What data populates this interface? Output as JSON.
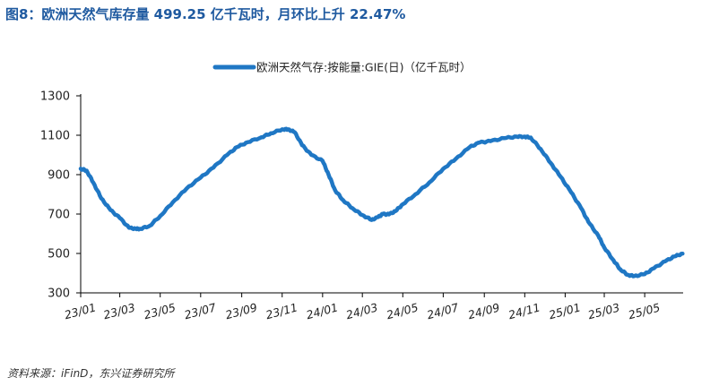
{
  "figure": {
    "title": "图8：欧洲天然气库存量 499.25 亿千瓦时，月环比上升 22.47%",
    "source": "资料来源：iFinD，东兴证券研究所"
  },
  "colors": {
    "title": "#1f5aa0",
    "series": "#1f77c4",
    "axis": "#000000"
  },
  "chart_data": {
    "type": "line",
    "title": "",
    "xlabel": "",
    "ylabel": "",
    "ylim": [
      300,
      1300
    ],
    "yticks": [
      300,
      500,
      700,
      900,
      1100,
      1300
    ],
    "xlim": [
      "2023-01-01",
      "2025-06-28"
    ],
    "xticks": [
      "23/01",
      "23/03",
      "23/05",
      "23/07",
      "23/09",
      "23/11",
      "24/01",
      "24/03",
      "24/05",
      "24/07",
      "24/09",
      "24/11",
      "25/01",
      "25/03",
      "25/05"
    ],
    "grid": false,
    "legend": "top-center",
    "series": [
      {
        "name": "欧洲天然气存:按能量:GIE(日)（亿千瓦时）",
        "x": [
          "2023-01-01",
          "2023-01-10",
          "2023-01-20",
          "2023-02-01",
          "2023-02-15",
          "2023-03-01",
          "2023-03-15",
          "2023-03-25",
          "2023-04-01",
          "2023-04-15",
          "2023-05-01",
          "2023-05-20",
          "2023-06-10",
          "2023-07-01",
          "2023-07-20",
          "2023-08-10",
          "2023-08-25",
          "2023-09-10",
          "2023-10-01",
          "2023-10-15",
          "2023-11-01",
          "2023-11-10",
          "2023-11-20",
          "2023-12-01",
          "2023-12-15",
          "2024-01-01",
          "2024-01-10",
          "2024-01-20",
          "2024-02-01",
          "2024-02-15",
          "2024-03-01",
          "2024-03-15",
          "2024-03-25",
          "2024-04-01",
          "2024-04-10",
          "2024-04-20",
          "2024-05-01",
          "2024-05-20",
          "2024-06-10",
          "2024-07-01",
          "2024-07-20",
          "2024-08-10",
          "2024-08-25",
          "2024-09-10",
          "2024-10-01",
          "2024-10-20",
          "2024-11-01",
          "2024-11-10",
          "2024-11-25",
          "2024-12-10",
          "2024-12-25",
          "2025-01-10",
          "2025-01-25",
          "2025-02-05",
          "2025-02-20",
          "2025-03-01",
          "2025-03-15",
          "2025-03-25",
          "2025-04-05",
          "2025-04-15",
          "2025-05-01",
          "2025-05-15",
          "2025-06-01",
          "2025-06-15",
          "2025-06-27"
        ],
        "values": [
          930,
          920,
          860,
          780,
          720,
          680,
          630,
          625,
          625,
          640,
          690,
          760,
          830,
          885,
          935,
          1000,
          1040,
          1065,
          1090,
          1110,
          1130,
          1130,
          1115,
          1050,
          1000,
          970,
          900,
          820,
          770,
          730,
          695,
          670,
          685,
          700,
          698,
          715,
          750,
          800,
          860,
          930,
          980,
          1040,
          1063,
          1070,
          1085,
          1093,
          1093,
          1088,
          1030,
          960,
          890,
          810,
          730,
          660,
          590,
          530,
          465,
          420,
          392,
          385,
          395,
          425,
          460,
          485,
          499
        ]
      }
    ]
  }
}
